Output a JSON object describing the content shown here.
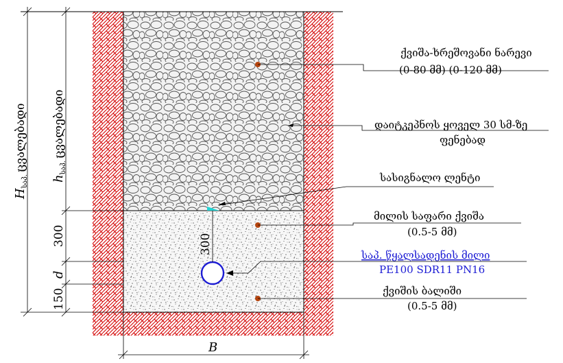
{
  "labels": {
    "gravel_mix": "ქვიშა-ხრეშოვანი ნარევი",
    "gravel_mix_sizes": "(0-80 მმ) (0-120 მმ)",
    "compaction_line1": "დაიტკეპნოს ყოველ 30 სმ-ზე",
    "compaction_line2": "ფენებად",
    "signal_tape": "სასიგნალო ლენტი",
    "pipe_sand": "მილის საფარი ქვიშა",
    "pipe_sand_size": "(0.5-5 მმ)",
    "pipe_name": "საპ. წყალსადენის მილი",
    "pipe_spec": "PE100 SDR11 PN16",
    "sand_bed": "ქვიშის ბალიში",
    "sand_bed_size": "(0.5-5 მმ)"
  },
  "dimensions": {
    "H_symbol": "H",
    "H_sub": "საპ.",
    "H_word": "ცვალებადი",
    "h_symbol": "h",
    "h_sub": "საპ.",
    "h_word": "ცვალებადი",
    "d300_left": "300",
    "d300_inner": "300",
    "d_symbol": "d",
    "d150": "150",
    "B_symbol": "B"
  },
  "colors": {
    "hatch": "#d40000",
    "pipe": "#1c1cd4",
    "marker": "#b5450f",
    "tape": "#22d3d3"
  }
}
